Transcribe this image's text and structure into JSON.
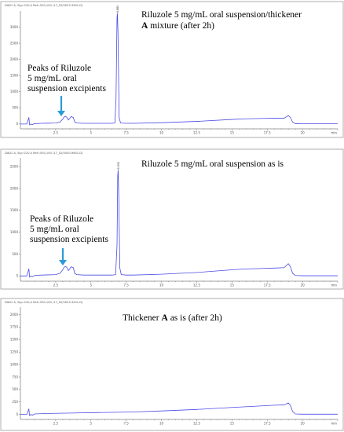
{
  "chart_data": [
    {
      "type": "line",
      "header": "DAD1 A, Sig=220,4 Ref=550,100 (17_02/5023-3901.D)",
      "peak_label": "6.880",
      "title_lines": [
        "Riluzole 5 mg/mL oral suspension/thickener",
        "A mixture (after 2h)"
      ],
      "title_bold_prefix": "A",
      "annotation_lines": [
        "Peaks of Riluzole",
        "5 mg/mL oral",
        "suspension excipients"
      ],
      "x_ticks": [
        "2.5",
        "5",
        "7.5",
        "10",
        "12.5",
        "15",
        "17.5",
        "20"
      ],
      "x_end_label": "min",
      "y_ticks": [
        "0",
        "500",
        "1000",
        "1500",
        "2000",
        "2500",
        "3000"
      ],
      "xlim": [
        0,
        22.5
      ],
      "ylim": [
        -150,
        3500
      ],
      "color": "#4b4be6",
      "arrow_color": "#2b9bd8",
      "series": [
        {
          "x": [
            0.0,
            0.45,
            0.6,
            0.65,
            0.75,
            0.85,
            1.0,
            1.5,
            2.0,
            2.5,
            2.8,
            3.0,
            3.1,
            3.2,
            3.3,
            3.4,
            3.6,
            3.75,
            3.85,
            4.0,
            4.5,
            5.0,
            5.5,
            6.0,
            6.5,
            6.7,
            6.78,
            6.85,
            6.88,
            6.92,
            7.0,
            7.1,
            7.5,
            8.0,
            10.0,
            12.5,
            15.0,
            16.0,
            17.0,
            18.0,
            18.7,
            19.0,
            19.15,
            19.3,
            19.5,
            20.0,
            21.0,
            22.5
          ],
          "y": [
            0,
            0,
            200,
            -30,
            0,
            -20,
            10,
            20,
            25,
            30,
            60,
            150,
            220,
            240,
            200,
            120,
            230,
            200,
            60,
            30,
            20,
            20,
            20,
            20,
            20,
            30,
            800,
            3300,
            3420,
            2800,
            200,
            30,
            20,
            20,
            40,
            80,
            140,
            160,
            170,
            180,
            180,
            260,
            200,
            60,
            10,
            5,
            5,
            5
          ]
        }
      ]
    },
    {
      "type": "line",
      "header": "DAD1 A, Sig=220,4 Ref=550,100 (17_02/5030-9601.D)",
      "peak_label": "6.930",
      "title_lines": [
        "Riluzole 5 mg/mL oral suspension as is"
      ],
      "annotation_lines": [
        "Peaks of Riluzole",
        "5 mg/mL oral",
        "suspension excipients"
      ],
      "x_ticks": [
        "2.5",
        "5",
        "7.5",
        "10",
        "12.5",
        "15",
        "17.5",
        "20"
      ],
      "x_end_label": "min",
      "y_ticks": [
        "0",
        "500",
        "1000",
        "1500",
        "2000",
        "2500"
      ],
      "xlim": [
        0,
        22.5
      ],
      "ylim": [
        -120,
        2700
      ],
      "color": "#4b4be6",
      "arrow_color": "#2b9bd8",
      "series": [
        {
          "x": [
            0.0,
            0.45,
            0.6,
            0.65,
            0.75,
            0.85,
            1.0,
            1.5,
            2.0,
            2.5,
            2.8,
            3.0,
            3.1,
            3.2,
            3.3,
            3.4,
            3.6,
            3.75,
            3.85,
            4.0,
            4.5,
            5.0,
            5.5,
            6.0,
            6.5,
            6.75,
            6.85,
            6.9,
            6.93,
            6.97,
            7.05,
            7.15,
            7.5,
            8.0,
            10.0,
            12.5,
            15.0,
            16.0,
            17.0,
            18.0,
            18.7,
            19.0,
            19.15,
            19.3,
            19.5,
            20.0,
            21.0,
            22.5
          ],
          "y": [
            0,
            0,
            160,
            -30,
            0,
            -20,
            10,
            20,
            25,
            30,
            60,
            140,
            200,
            220,
            190,
            120,
            210,
            190,
            60,
            30,
            20,
            20,
            20,
            20,
            20,
            30,
            700,
            2300,
            2420,
            1900,
            180,
            30,
            20,
            20,
            40,
            80,
            140,
            160,
            170,
            180,
            190,
            280,
            210,
            60,
            10,
            5,
            5,
            5
          ]
        }
      ]
    },
    {
      "type": "line",
      "header": "DAD1 A, Sig=220,4 Ref=550,100 (17_02/5023-3201.D)",
      "title_lines": [
        "Thickener A as is (after 2h)"
      ],
      "title_bold_prefix": "A",
      "x_ticks": [
        "2.5",
        "5",
        "7.5",
        "10",
        "12.5",
        "15",
        "17.5",
        "20"
      ],
      "x_end_label": "min",
      "y_ticks": [
        "0",
        "250",
        "500",
        "750",
        "1000",
        "1250",
        "1500",
        "1750",
        "2000"
      ],
      "xlim": [
        0,
        22.5
      ],
      "ylim": [
        -100,
        2150
      ],
      "color": "#4b4be6",
      "series": [
        {
          "x": [
            0.0,
            0.45,
            0.6,
            0.65,
            0.75,
            0.85,
            1.0,
            2.0,
            4.0,
            6.0,
            8.0,
            10.0,
            12.5,
            15.0,
            17.0,
            18.0,
            18.7,
            19.0,
            19.15,
            19.3,
            19.5,
            20.0,
            21.0,
            22.5
          ],
          "y": [
            0,
            0,
            110,
            -25,
            0,
            -15,
            10,
            20,
            30,
            40,
            50,
            70,
            100,
            140,
            170,
            185,
            190,
            230,
            180,
            60,
            10,
            5,
            5,
            5
          ]
        }
      ]
    }
  ]
}
